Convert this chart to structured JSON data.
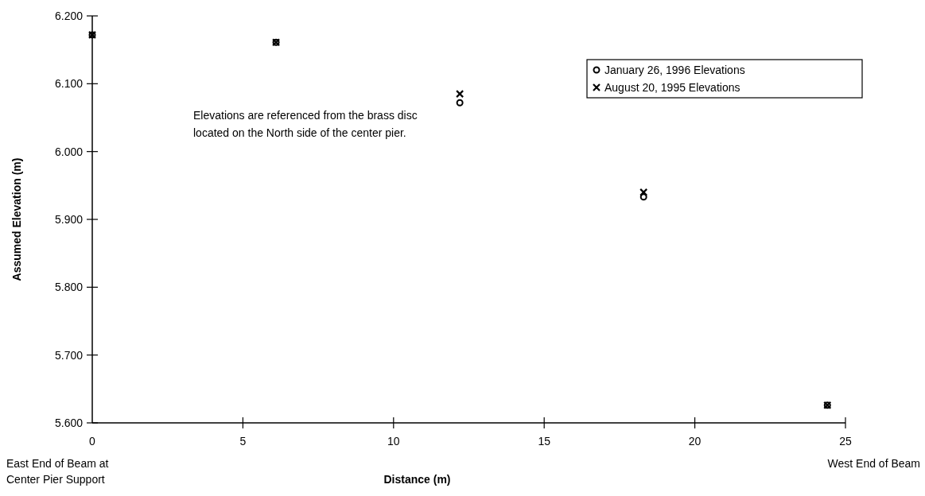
{
  "chart_data": {
    "type": "scatter",
    "xlabel": "Distance (m)",
    "ylabel": "Assumed Elevation (m)",
    "x": [
      0,
      6.1,
      12.2,
      18.3,
      24.4
    ],
    "series": [
      {
        "name": "January 26, 1996 Elevations",
        "color": "#000000",
        "marker": "circle",
        "values": [
          6.172,
          6.161,
          6.072,
          5.933,
          5.626
        ]
      },
      {
        "name": "August 20, 1995 Elevations",
        "color": "#000000",
        "marker": "cross",
        "values": [
          6.172,
          6.161,
          6.085,
          5.94,
          5.626
        ]
      }
    ],
    "xlim": [
      0,
      25
    ],
    "xticks": [
      0,
      5,
      10,
      15,
      20,
      25
    ],
    "ylim": [
      5.6,
      6.2
    ],
    "yticks": [
      {
        "value": 5.6,
        "label": "5.600"
      },
      {
        "value": 5.7,
        "label": "5.700"
      },
      {
        "value": 5.8,
        "label": "5.800"
      },
      {
        "value": 5.9,
        "label": "5.900"
      },
      {
        "value": 6.0,
        "label": "6.000"
      },
      {
        "value": 6.1,
        "label": "6.100"
      },
      {
        "value": 6.2,
        "label": "6.200"
      }
    ],
    "grid": false,
    "legend": "top right",
    "annotations": [
      "East End of Beam at Center Pier Support",
      "West End of Beam",
      "Elevations are referenced from the brass disc located on the North side of the center pier."
    ]
  }
}
